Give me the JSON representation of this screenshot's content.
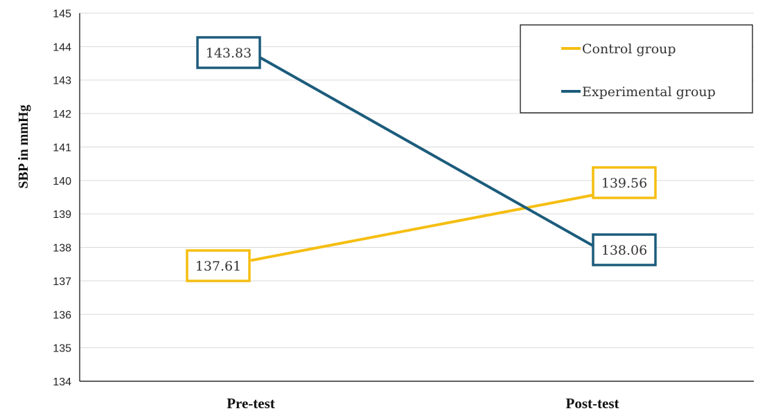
{
  "chart_data": {
    "type": "line",
    "title": "",
    "xlabel": "",
    "ylabel": "SBP in mmHg",
    "categories": [
      "Pre-test",
      "Post-test"
    ],
    "ylim": [
      134,
      145
    ],
    "yticks": [
      "134",
      "135",
      "136",
      "137",
      "138",
      "139",
      "140",
      "141",
      "142",
      "143",
      "144",
      "145"
    ],
    "grid": true,
    "legend_position": "top-right",
    "series": [
      {
        "name": "Control group",
        "values": [
          137.61,
          139.56
        ],
        "labels": [
          "137.61",
          "139.56"
        ],
        "color": "#F5BE11"
      },
      {
        "name": "Experimental group",
        "values": [
          143.83,
          138.06
        ],
        "labels": [
          "143.83",
          "138.06"
        ],
        "color": "#1C5C7C"
      }
    ]
  }
}
